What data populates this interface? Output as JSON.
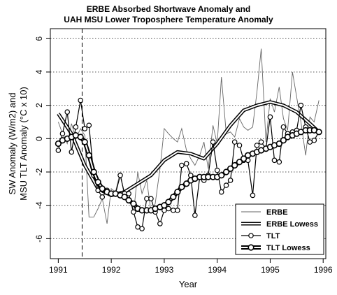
{
  "chart_data": {
    "type": "line",
    "title": "ERBE Absorbed Shortwave Anomaly and",
    "subtitle": "UAH MSU Lower Troposphere Temperature Anomaly",
    "xlabel": "Year",
    "ylabel_line1": "SW Anomaly (W/m2) and",
    "ylabel_line2": "MSU TLT Anomaly (°C x 10)",
    "xlim": [
      1990.85,
      1996.05
    ],
    "ylim": [
      -7.2,
      6.6
    ],
    "x_ticks": [
      1991,
      1992,
      1993,
      1994,
      1995,
      1996
    ],
    "y_ticks": [
      -6,
      -4,
      -2,
      0,
      2,
      4,
      6
    ],
    "grid": "dotted horizontal",
    "vline_x": 1991.45,
    "legend_position": "bottom-right",
    "series": [
      {
        "name": "ERBE",
        "style": "thin",
        "x": [
          1991.0,
          1991.08,
          1991.17,
          1991.25,
          1991.33,
          1991.42,
          1991.5,
          1991.58,
          1991.67,
          1991.75,
          1991.83,
          1991.92,
          1992.0,
          1992.08,
          1992.17,
          1992.25,
          1992.33,
          1992.42,
          1992.5,
          1992.58,
          1992.67,
          1992.75,
          1992.83,
          1992.92,
          1993.0,
          1993.08,
          1993.17,
          1993.25,
          1993.33,
          1993.42,
          1993.5,
          1993.58,
          1993.67,
          1993.75,
          1993.83,
          1993.92,
          1994.0,
          1994.08,
          1994.17,
          1994.25,
          1994.33,
          1994.42,
          1994.5,
          1994.58,
          1994.67,
          1994.75,
          1994.83,
          1994.92,
          1995.0,
          1995.08,
          1995.17,
          1995.25,
          1995.33,
          1995.42,
          1995.5,
          1995.58,
          1995.67,
          1995.75,
          1995.83,
          1995.92
        ],
        "values": [
          1.0,
          0.3,
          -0.3,
          0.9,
          0.0,
          0.6,
          0.2,
          -4.7,
          -4.7,
          -4.2,
          -3.6,
          -5.1,
          -3.0,
          -3.2,
          -2.0,
          -3.5,
          -3.3,
          -4.5,
          -2.0,
          -3.3,
          -2.5,
          -4.4,
          -3.9,
          -1.8,
          0.6,
          0.3,
          0.0,
          -0.2,
          0.6,
          -0.7,
          -1.2,
          -1.6,
          -1.0,
          -0.2,
          -1.8,
          0.8,
          -0.3,
          3.7,
          0.3,
          0.4,
          0.1,
          1.2,
          0.7,
          0.5,
          0.7,
          2.8,
          5.4,
          -0.2,
          2.4,
          1.6,
          3.1,
          1.2,
          0.5,
          4.0,
          2.5,
          1.0,
          -1.0,
          1.3,
          1.0,
          2.3
        ]
      },
      {
        "name": "ERBE Lowess",
        "style": "double",
        "x": [
          1991.0,
          1991.25,
          1991.5,
          1991.75,
          1992.0,
          1992.25,
          1992.5,
          1992.75,
          1993.0,
          1993.25,
          1993.5,
          1993.75,
          1994.0,
          1994.25,
          1994.5,
          1994.75,
          1995.0,
          1995.25,
          1995.5,
          1995.75,
          1995.92
        ],
        "values": [
          1.5,
          0.3,
          -1.6,
          -3.0,
          -3.4,
          -3.2,
          -2.7,
          -2.2,
          -1.3,
          -0.8,
          -0.9,
          -1.2,
          -0.3,
          0.8,
          1.7,
          2.0,
          2.2,
          2.0,
          1.6,
          0.9,
          0.4
        ]
      },
      {
        "name": "TLT",
        "style": "line-circles",
        "x": [
          1991.0,
          1991.08,
          1991.17,
          1991.25,
          1991.33,
          1991.42,
          1991.5,
          1991.58,
          1991.67,
          1991.75,
          1991.83,
          1991.92,
          1992.0,
          1992.08,
          1992.17,
          1992.25,
          1992.33,
          1992.42,
          1992.5,
          1992.58,
          1992.67,
          1992.75,
          1992.83,
          1992.92,
          1993.0,
          1993.08,
          1993.17,
          1993.25,
          1993.33,
          1993.42,
          1993.5,
          1993.58,
          1993.67,
          1993.75,
          1993.83,
          1993.92,
          1994.0,
          1994.08,
          1994.17,
          1994.25,
          1994.33,
          1994.42,
          1994.5,
          1994.58,
          1994.67,
          1994.75,
          1994.83,
          1994.92,
          1995.0,
          1995.08,
          1995.17,
          1995.25,
          1995.33,
          1995.42,
          1995.5,
          1995.58,
          1995.67,
          1995.75,
          1995.83,
          1995.92
        ],
        "values": [
          -0.7,
          0.3,
          1.6,
          -0.8,
          0.7,
          2.3,
          0.6,
          0.8,
          -2.2,
          -3.1,
          -3.5,
          -3.1,
          -3.3,
          -3.3,
          -2.2,
          -3.3,
          -3.3,
          -4.4,
          -5.3,
          -5.4,
          -3.6,
          -3.6,
          -4.4,
          -5.1,
          -4.3,
          -4.2,
          -4.3,
          -4.3,
          -1.6,
          -1.5,
          -2.2,
          -4.6,
          -2.3,
          -2.5,
          -2.2,
          -0.2,
          -1.9,
          -3.2,
          -2.8,
          -2.5,
          -0.2,
          -0.4,
          -1.3,
          -1.3,
          -3.4,
          -0.4,
          -0.2,
          -0.6,
          1.3,
          -1.3,
          -1.4,
          0.7,
          0.3,
          0.4,
          0.5,
          2.0,
          0.7,
          -0.2,
          -0.1,
          0.4
        ]
      },
      {
        "name": "TLT Lowess",
        "style": "thick-open-circles",
        "x": [
          1991.0,
          1991.08,
          1991.17,
          1991.25,
          1991.33,
          1991.42,
          1991.5,
          1991.58,
          1991.67,
          1991.75,
          1991.83,
          1991.92,
          1992.0,
          1992.08,
          1992.17,
          1992.25,
          1992.33,
          1992.42,
          1992.5,
          1992.58,
          1992.67,
          1992.75,
          1992.83,
          1992.92,
          1993.0,
          1993.08,
          1993.17,
          1993.25,
          1993.33,
          1993.42,
          1993.5,
          1993.58,
          1993.67,
          1993.75,
          1993.83,
          1993.92,
          1994.0,
          1994.08,
          1994.17,
          1994.25,
          1994.33,
          1994.42,
          1994.5,
          1994.58,
          1994.67,
          1994.75,
          1994.83,
          1994.92,
          1995.0,
          1995.08,
          1995.17,
          1995.25,
          1995.33,
          1995.42,
          1995.5,
          1995.58,
          1995.67,
          1995.75,
          1995.83,
          1995.92
        ],
        "values": [
          -0.3,
          -0.1,
          0.0,
          0.1,
          0.2,
          0.1,
          -0.2,
          -1.0,
          -2.0,
          -2.6,
          -3.0,
          -3.2,
          -3.3,
          -3.3,
          -3.4,
          -3.5,
          -3.7,
          -3.9,
          -4.2,
          -4.3,
          -4.3,
          -4.3,
          -4.2,
          -4.1,
          -4.0,
          -3.8,
          -3.5,
          -3.2,
          -2.9,
          -2.7,
          -2.5,
          -2.4,
          -2.3,
          -2.3,
          -2.3,
          -2.3,
          -2.3,
          -2.2,
          -2.0,
          -1.8,
          -1.6,
          -1.4,
          -1.2,
          -1.0,
          -0.9,
          -0.8,
          -0.7,
          -0.6,
          -0.5,
          -0.4,
          -0.3,
          -0.1,
          0.1,
          0.2,
          0.3,
          0.4,
          0.5,
          0.5,
          0.5,
          0.4
        ]
      }
    ]
  }
}
